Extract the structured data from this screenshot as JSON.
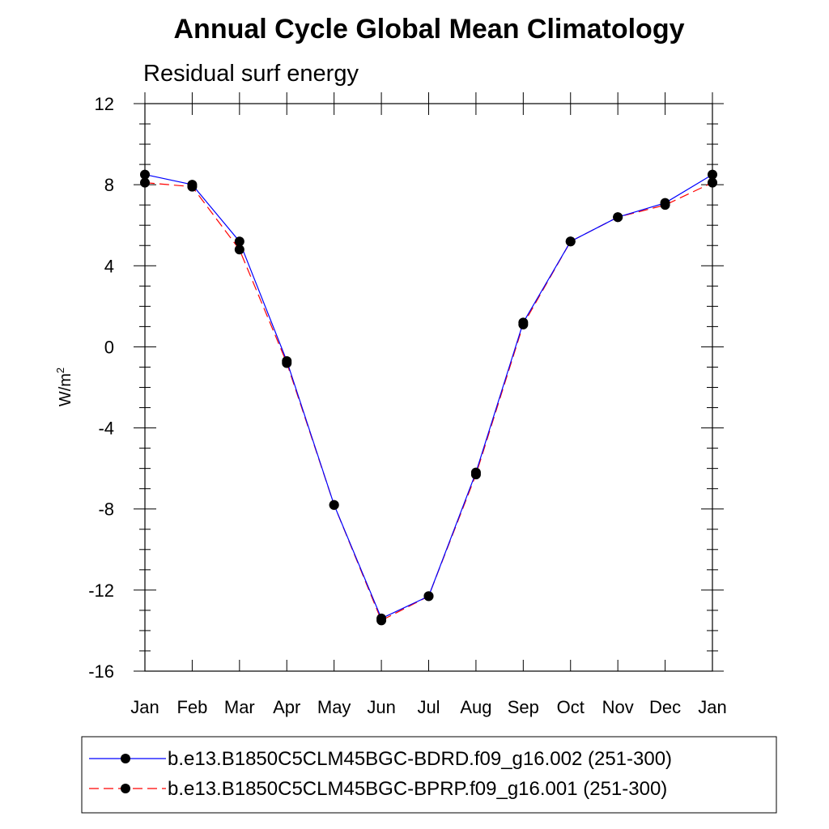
{
  "chart_data": {
    "type": "line",
    "title": "Annual Cycle Global Mean Climatology",
    "subtitle": "Residual surf energy",
    "xlabel": "",
    "ylabel": "W/m",
    "ylabel_superscript": "2",
    "categories": [
      "Jan",
      "Feb",
      "Mar",
      "Apr",
      "May",
      "Jun",
      "Jul",
      "Aug",
      "Sep",
      "Oct",
      "Nov",
      "Dec",
      "Jan"
    ],
    "ylim": [
      -16,
      12
    ],
    "yticks": [
      12,
      8,
      4,
      0,
      -4,
      -8,
      -12,
      -16
    ],
    "ytick_labels": [
      "12",
      "8",
      "4",
      "0",
      "-4",
      "-8",
      "-12",
      "-16"
    ],
    "series": [
      {
        "name": "b.e13.B1850C5CLM45BGC-BDRD.f09_g16.002 (251-300)",
        "color": "#0000ff",
        "style": "solid",
        "marker": "circle",
        "values": [
          8.5,
          8.0,
          5.2,
          -0.7,
          -7.8,
          -13.4,
          -12.3,
          -6.2,
          1.2,
          5.2,
          6.4,
          7.1,
          8.5
        ]
      },
      {
        "name": "b.e13.B1850C5CLM45BGC-BPRP.f09_g16.001 (251-300)",
        "color": "#ff0000",
        "style": "dashed",
        "marker": "circle",
        "values": [
          8.1,
          7.9,
          4.8,
          -0.8,
          -7.8,
          -13.5,
          -12.3,
          -6.3,
          1.1,
          5.2,
          6.4,
          7.0,
          8.1
        ]
      }
    ],
    "legend_position": "bottom"
  }
}
